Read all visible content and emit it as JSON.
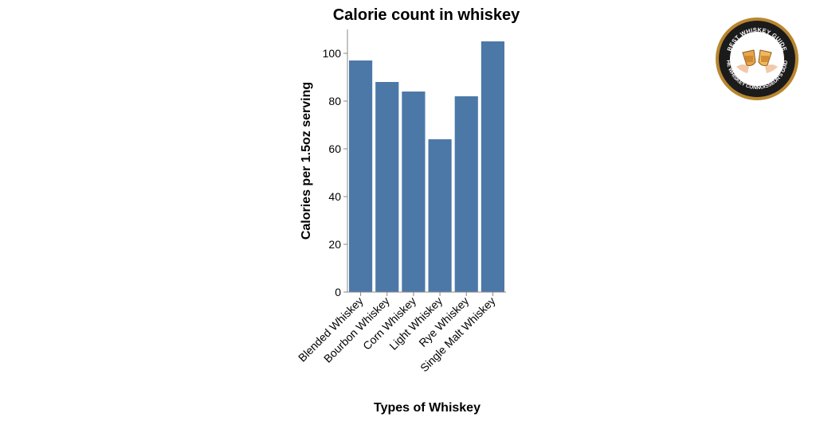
{
  "chart_data": {
    "type": "bar",
    "title": "Calorie count in whiskey",
    "xlabel": "Types of Whiskey",
    "ylabel": "Calories per 1.5oz serving",
    "categories": [
      "Blended Whiskey",
      "Bourbon Whiskey",
      "Corn Whiskey",
      "Light Whiskey",
      "Rye Whiskey",
      "Single Malt Whiskey"
    ],
    "values": [
      97,
      88,
      84,
      64,
      82,
      105
    ],
    "ylim": [
      0,
      110
    ],
    "yticks": [
      0,
      20,
      40,
      60,
      80,
      100
    ],
    "grid": false,
    "bar_color": "#4c78a8"
  },
  "badge": {
    "top_text": "BEST WHISKEY GUIDE",
    "bottom_text": "THE WHISKEY CONNOISSEUR'S GUIDE",
    "ring_color": "#b8862f",
    "bg_color": "#1b1b1b",
    "icon": "toasting-glasses-icon"
  }
}
